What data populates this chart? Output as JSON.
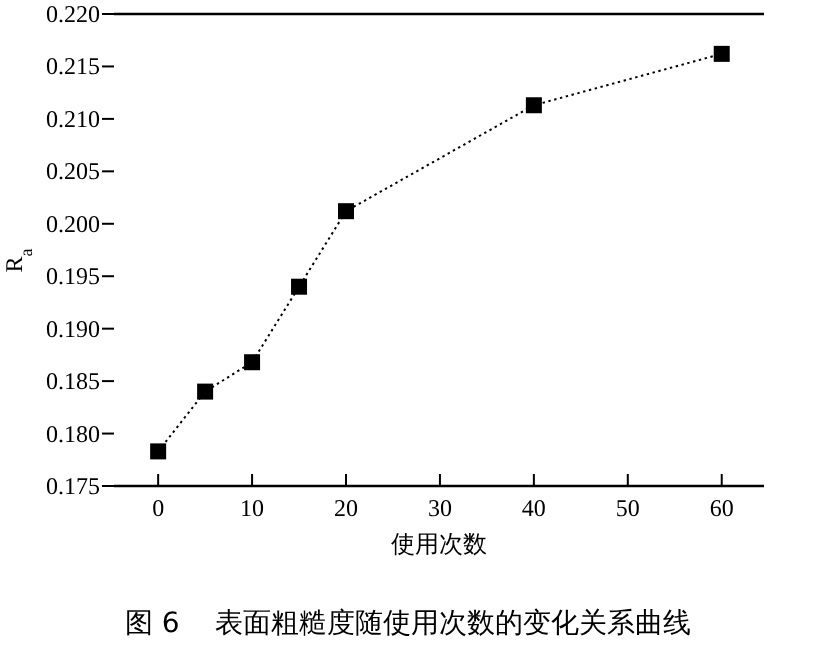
{
  "chart_data": {
    "type": "line",
    "xlabel": "使用次数",
    "ylabel": "R$_{a}$",
    "annotations": [
      "图 6    表面粗糙度随使用次数的变化关系曲线"
    ],
    "x": [
      0,
      5,
      10,
      15,
      20,
      40,
      60
    ],
    "series": [
      {
        "color": "#000000",
        "values": [
          0.1783,
          0.184,
          0.1868,
          0.194,
          0.2012,
          0.2113,
          0.2162
        ]
      }
    ],
    "marker": "square",
    "line_style": "dotted",
    "xlim": [
      -4.7,
      64.5
    ],
    "xticks": [
      0,
      10,
      20,
      30,
      40,
      50,
      60
    ],
    "ylim": [
      0.175,
      0.22
    ],
    "yticks": [
      {
        "value": 0.175,
        "label": "0.175"
      },
      {
        "value": 0.18,
        "label": "0.180"
      },
      {
        "value": 0.185,
        "label": "0.185"
      },
      {
        "value": 0.19,
        "label": "0.190"
      },
      {
        "value": 0.195,
        "label": "0.195"
      },
      {
        "value": 0.2,
        "label": "0.200"
      },
      {
        "value": 0.205,
        "label": "0.205"
      },
      {
        "value": 0.21,
        "label": "0.210"
      },
      {
        "value": 0.215,
        "label": "0.215"
      },
      {
        "value": 0.22,
        "label": "0.220"
      }
    ],
    "grid": false
  }
}
